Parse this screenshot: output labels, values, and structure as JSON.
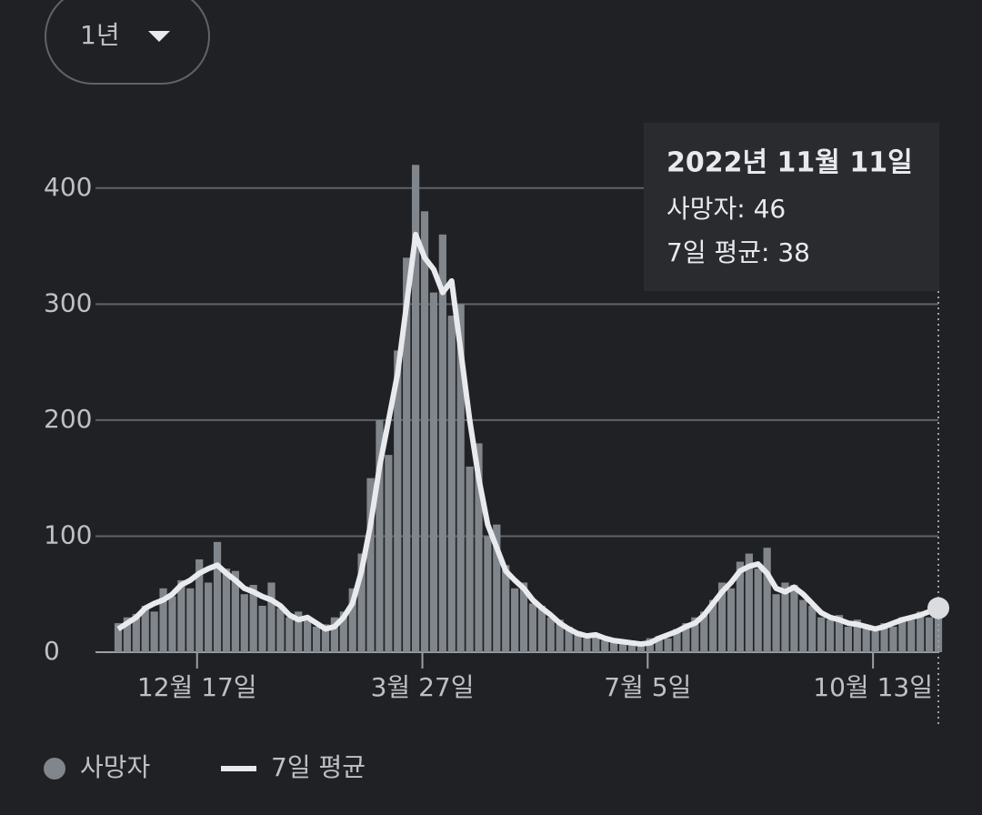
{
  "chart_data": {
    "type": "bar",
    "x": [
      0,
      4,
      8,
      12,
      16,
      20,
      24,
      28,
      32,
      36,
      40,
      44,
      48,
      52,
      56,
      60,
      64,
      68,
      72,
      76,
      80,
      84,
      88,
      92,
      96,
      100,
      104,
      108,
      112,
      116,
      120,
      124,
      128,
      132,
      136,
      140,
      144,
      148,
      152,
      156,
      160,
      164,
      168,
      172,
      176,
      180,
      184,
      188,
      192,
      196,
      200,
      204,
      208,
      212,
      216,
      220,
      224,
      228,
      232,
      236,
      240,
      244,
      248,
      252,
      256,
      260,
      264,
      268,
      272,
      276,
      280,
      284,
      288,
      292,
      296,
      300,
      304,
      308,
      312,
      316,
      320,
      324,
      328,
      332,
      336,
      340,
      344,
      348,
      352,
      356,
      360,
      364
    ],
    "series": [
      {
        "name": "사망자",
        "type": "bar",
        "color": "#80868b",
        "values": [
          25,
          30,
          33,
          40,
          35,
          55,
          48,
          62,
          55,
          80,
          60,
          95,
          72,
          70,
          50,
          58,
          40,
          60,
          38,
          30,
          35,
          28,
          22,
          24,
          30,
          35,
          55,
          85,
          150,
          200,
          170,
          260,
          340,
          420,
          380,
          310,
          360,
          290,
          300,
          160,
          180,
          100,
          110,
          75,
          55,
          60,
          42,
          40,
          30,
          28,
          22,
          18,
          12,
          16,
          10,
          12,
          8,
          10,
          6,
          12,
          14,
          12,
          20,
          25,
          30,
          35,
          45,
          60,
          55,
          78,
          85,
          72,
          90,
          50,
          60,
          58,
          45,
          40,
          30,
          28,
          32,
          22,
          28,
          20,
          18,
          25,
          22,
          30,
          28,
          35,
          30,
          46
        ]
      },
      {
        "name": "7일 평균",
        "type": "line",
        "color": "#e8eaed",
        "values": [
          20,
          25,
          30,
          38,
          42,
          45,
          50,
          58,
          62,
          68,
          72,
          75,
          68,
          62,
          55,
          52,
          48,
          45,
          40,
          32,
          28,
          30,
          25,
          20,
          22,
          30,
          42,
          70,
          110,
          160,
          200,
          240,
          300,
          360,
          340,
          330,
          310,
          320,
          260,
          200,
          150,
          110,
          90,
          70,
          62,
          55,
          45,
          38,
          32,
          25,
          20,
          16,
          14,
          15,
          12,
          10,
          9,
          8,
          7,
          8,
          12,
          15,
          18,
          22,
          25,
          32,
          42,
          52,
          60,
          70,
          74,
          76,
          68,
          55,
          52,
          56,
          50,
          42,
          34,
          30,
          28,
          25,
          24,
          22,
          20,
          22,
          25,
          28,
          30,
          32,
          35,
          38
        ]
      }
    ],
    "xlim": [
      0,
      364
    ],
    "xticks": [
      {
        "value": 35,
        "label": "12월 17일"
      },
      {
        "value": 135,
        "label": "3월 27일"
      },
      {
        "value": 235,
        "label": "7월 5일"
      },
      {
        "value": 335,
        "label": "10월 13일"
      }
    ],
    "ylim": [
      0,
      450
    ],
    "yticks": [
      0,
      100,
      200,
      300,
      400
    ],
    "grid": true,
    "legend": "bottom-left",
    "tooltip": {
      "title": "2022년 11월 11일",
      "lines": [
        "사망자: 46",
        "7일 평균: 38"
      ]
    }
  },
  "range_selector": "1년"
}
